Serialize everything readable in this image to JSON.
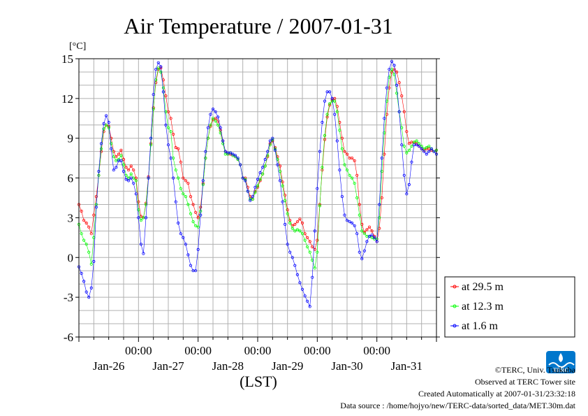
{
  "chart_data": {
    "type": "line",
    "title": "Air Temperature / 2007-01-31",
    "ylabel": "[°C]",
    "xlabel": "(LST)",
    "ylim": [
      -6,
      15
    ],
    "yticks": [
      "15",
      "12",
      "9",
      "6",
      "3",
      "0",
      "-3",
      "-6"
    ],
    "ytick_values": [
      15,
      12,
      9,
      6,
      3,
      0,
      -3,
      -6
    ],
    "xlim": [
      0,
      144
    ],
    "time_labels": [
      "00:00",
      "00:00",
      "00:00",
      "00:00",
      "00:00"
    ],
    "day_labels": [
      "Jan-26",
      "Jan-27",
      "Jan-28",
      "Jan-29",
      "Jan-30",
      "Jan-31"
    ],
    "grid": true,
    "legend_position": "right",
    "x_unit": "hours from Jan-26 00:00",
    "series": [
      {
        "name": "at 29.5 m",
        "color": "#ff0000",
        "x": [
          0,
          1,
          2,
          3,
          4,
          5,
          6,
          7,
          8,
          9,
          10,
          11,
          12,
          13,
          14,
          15,
          16,
          17,
          18,
          19,
          20,
          21,
          22,
          23,
          24,
          25,
          26,
          27,
          28,
          29,
          30,
          31,
          32,
          33,
          34,
          35,
          36,
          37,
          38,
          39,
          40,
          41,
          42,
          43,
          44,
          45,
          46,
          47,
          48,
          49,
          50,
          51,
          52,
          53,
          54,
          55,
          56,
          57,
          58,
          59,
          60,
          61,
          62,
          63,
          64,
          65,
          66,
          67,
          68,
          69,
          70,
          71,
          72,
          73,
          74,
          75,
          76,
          77,
          78,
          79,
          80,
          81,
          82,
          83,
          84,
          85,
          86,
          87,
          88,
          89,
          90,
          91,
          92,
          93,
          94,
          95,
          96,
          97,
          98,
          99,
          100,
          101,
          102,
          103,
          104,
          105,
          106,
          107,
          108,
          109,
          110,
          111,
          112,
          113,
          114,
          115,
          116,
          117,
          118,
          119,
          120,
          121,
          122,
          123,
          124,
          125,
          126,
          127,
          128,
          129,
          130,
          131,
          132,
          133,
          134,
          135,
          136,
          137,
          138,
          139,
          140,
          141,
          142,
          143,
          144
        ],
        "y": [
          4.0,
          3.5,
          2.8,
          2.6,
          2.3,
          1.8,
          3.2,
          4.6,
          6.2,
          8.0,
          9.5,
          10.0,
          9.9,
          9.0,
          8.0,
          7.6,
          7.8,
          8.1,
          7.4,
          6.8,
          6.6,
          6.9,
          6.6,
          6.0,
          4.2,
          3.1,
          3.0,
          4.1,
          6.1,
          8.6,
          11.3,
          13.2,
          14.2,
          14.3,
          13.4,
          12.2,
          11.0,
          10.5,
          9.3,
          8.3,
          8.2,
          7.2,
          6.0,
          5.8,
          5.6,
          4.6,
          4.0,
          3.4,
          3.0,
          3.8,
          5.6,
          7.5,
          9.0,
          9.9,
          10.4,
          10.5,
          10.3,
          9.6,
          8.8,
          8.0,
          7.8,
          7.8,
          7.7,
          7.6,
          7.4,
          7.0,
          6.0,
          6.0,
          5.3,
          4.6,
          4.4,
          5.0,
          5.3,
          5.8,
          6.3,
          6.9,
          7.6,
          8.6,
          8.8,
          8.3,
          7.6,
          6.9,
          5.7,
          4.7,
          3.6,
          2.8,
          2.4,
          2.5,
          2.7,
          2.9,
          2.6,
          1.8,
          1.5,
          1.2,
          0.8,
          0.6,
          1.3,
          4.0,
          6.6,
          8.9,
          10.6,
          11.5,
          11.9,
          12.0,
          11.4,
          10.2,
          9.0,
          8.0,
          7.8,
          7.5,
          7.5,
          7.3,
          6.2,
          4.0,
          2.5,
          1.9,
          2.1,
          2.3,
          2.0,
          1.6,
          1.2,
          2.2,
          4.5,
          7.8,
          10.8,
          12.8,
          14.0,
          14.2,
          14.0,
          13.2,
          12.2,
          11.0,
          9.5,
          8.6,
          8.7,
          8.7,
          8.6,
          8.4,
          8.2,
          8.1,
          8.2,
          8.2,
          8.1,
          8.0,
          8.1
        ]
      },
      {
        "name": "at 12.3 m",
        "color": "#00ff00",
        "x": [
          0,
          1,
          2,
          3,
          4,
          5,
          6,
          7,
          8,
          9,
          10,
          11,
          12,
          13,
          14,
          15,
          16,
          17,
          18,
          19,
          20,
          21,
          22,
          23,
          24,
          25,
          26,
          27,
          28,
          29,
          30,
          31,
          32,
          33,
          34,
          35,
          36,
          37,
          38,
          39,
          40,
          41,
          42,
          43,
          44,
          45,
          46,
          47,
          48,
          49,
          50,
          51,
          52,
          53,
          54,
          55,
          56,
          57,
          58,
          59,
          60,
          61,
          62,
          63,
          64,
          65,
          66,
          67,
          68,
          69,
          70,
          71,
          72,
          73,
          74,
          75,
          76,
          77,
          78,
          79,
          80,
          81,
          82,
          83,
          84,
          85,
          86,
          87,
          88,
          89,
          90,
          91,
          92,
          93,
          94,
          95,
          96,
          97,
          98,
          99,
          100,
          101,
          102,
          103,
          104,
          105,
          106,
          107,
          108,
          109,
          110,
          111,
          112,
          113,
          114,
          115,
          116,
          117,
          118,
          119,
          120,
          121,
          122,
          123,
          124,
          125,
          126,
          127,
          128,
          129,
          130,
          131,
          132,
          133,
          134,
          135,
          136,
          137,
          138,
          139,
          140,
          141,
          142,
          143,
          144
        ],
        "y": [
          2.5,
          1.8,
          1.3,
          1.0,
          0.4,
          -0.5,
          1.5,
          4.0,
          6.2,
          8.2,
          9.7,
          10.0,
          9.8,
          8.6,
          7.6,
          7.3,
          7.4,
          7.7,
          7.0,
          6.2,
          6.0,
          6.3,
          6.0,
          5.8,
          3.6,
          2.8,
          3.0,
          4.0,
          6.0,
          8.5,
          11.2,
          13.4,
          14.3,
          14.0,
          12.8,
          11.0,
          9.8,
          9.5,
          7.5,
          6.6,
          6.0,
          5.2,
          4.8,
          4.6,
          4.0,
          3.3,
          2.7,
          2.4,
          2.3,
          3.5,
          5.5,
          7.5,
          9.0,
          10.0,
          10.5,
          10.3,
          10.0,
          9.4,
          8.6,
          7.8,
          7.8,
          7.9,
          7.7,
          7.6,
          7.4,
          7.0,
          6.0,
          5.9,
          5.0,
          4.4,
          4.4,
          4.9,
          5.4,
          5.9,
          6.3,
          6.9,
          7.7,
          8.5,
          8.9,
          8.2,
          7.4,
          6.5,
          5.4,
          4.3,
          3.3,
          2.6,
          2.2,
          2.0,
          2.1,
          2.0,
          1.8,
          1.3,
          0.8,
          0.4,
          -0.2,
          -0.8,
          0.4,
          3.9,
          6.8,
          9.2,
          10.8,
          11.6,
          11.8,
          11.8,
          11.0,
          9.6,
          8.2,
          7.0,
          6.6,
          6.2,
          6.0,
          5.6,
          4.5,
          3.2,
          2.0,
          1.8,
          1.6,
          1.6,
          1.5,
          1.4,
          1.4,
          3.0,
          6.5,
          9.4,
          11.8,
          13.6,
          14.2,
          13.8,
          12.4,
          11.0,
          9.8,
          8.4,
          7.9,
          8.1,
          8.4,
          8.7,
          8.8,
          8.6,
          8.4,
          8.2,
          8.3,
          8.4,
          8.2,
          8.0,
          8.1
        ]
      },
      {
        "name": "at 1.6 m",
        "color": "#0000ff",
        "x": [
          0,
          1,
          2,
          3,
          4,
          5,
          6,
          7,
          8,
          9,
          10,
          11,
          12,
          13,
          14,
          15,
          16,
          17,
          18,
          19,
          20,
          21,
          22,
          23,
          24,
          25,
          26,
          27,
          28,
          29,
          30,
          31,
          32,
          33,
          34,
          35,
          36,
          37,
          38,
          39,
          40,
          41,
          42,
          43,
          44,
          45,
          46,
          47,
          48,
          49,
          50,
          51,
          52,
          53,
          54,
          55,
          56,
          57,
          58,
          59,
          60,
          61,
          62,
          63,
          64,
          65,
          66,
          67,
          68,
          69,
          70,
          71,
          72,
          73,
          74,
          75,
          76,
          77,
          78,
          79,
          80,
          81,
          82,
          83,
          84,
          85,
          86,
          87,
          88,
          89,
          90,
          91,
          92,
          93,
          94,
          95,
          96,
          97,
          98,
          99,
          100,
          101,
          102,
          103,
          104,
          105,
          106,
          107,
          108,
          109,
          110,
          111,
          112,
          113,
          114,
          115,
          116,
          117,
          118,
          119,
          120,
          121,
          122,
          123,
          124,
          125,
          126,
          127,
          128,
          129,
          130,
          131,
          132,
          133,
          134,
          135,
          136,
          137,
          138,
          139,
          140,
          141,
          142,
          143,
          144
        ],
        "y": [
          -0.7,
          -1.2,
          -1.8,
          -2.6,
          -3.0,
          -2.3,
          -0.3,
          3.8,
          6.5,
          8.6,
          10.1,
          10.7,
          10.2,
          8.2,
          6.6,
          6.8,
          7.3,
          7.3,
          6.5,
          5.9,
          5.8,
          6.0,
          5.6,
          4.8,
          3.0,
          1.0,
          0.3,
          3.0,
          6.0,
          9.0,
          12.3,
          14.2,
          14.7,
          14.4,
          12.5,
          10.0,
          8.5,
          7.5,
          6.0,
          4.2,
          2.6,
          1.8,
          1.5,
          1.0,
          0.2,
          -0.6,
          -1.0,
          -1.0,
          0.6,
          3.2,
          5.8,
          8.0,
          9.8,
          10.8,
          11.2,
          11.0,
          10.6,
          9.8,
          8.8,
          8.0,
          7.9,
          7.9,
          7.8,
          7.7,
          7.5,
          7.0,
          6.0,
          5.8,
          5.0,
          4.3,
          4.6,
          5.3,
          5.9,
          6.4,
          6.8,
          7.4,
          8.0,
          8.8,
          9.0,
          8.1,
          7.0,
          5.8,
          4.2,
          2.5,
          1.0,
          0.4,
          0.0,
          -0.6,
          -1.3,
          -1.9,
          -2.4,
          -2.9,
          -3.3,
          -3.7,
          -1.5,
          2.0,
          5.2,
          8.0,
          10.2,
          11.8,
          12.5,
          12.5,
          12.0,
          10.8,
          8.8,
          6.6,
          4.6,
          3.2,
          2.8,
          2.7,
          2.6,
          2.4,
          1.8,
          0.4,
          -0.1,
          0.5,
          1.2,
          1.6,
          1.7,
          1.5,
          1.2,
          4.0,
          7.5,
          10.5,
          12.8,
          14.2,
          14.8,
          14.5,
          13.0,
          11.0,
          8.5,
          6.2,
          4.8,
          5.5,
          7.2,
          8.5,
          8.5,
          8.4,
          8.2,
          8.0,
          7.8,
          8.0,
          8.2,
          8.0,
          7.8
        ]
      }
    ]
  },
  "footer": {
    "copyright": "©TERC, Univ. Tsukuba",
    "observed": "Observed at TERC Tower site",
    "created": "Created Automatically at 2007-01-31/23:32:18",
    "source": "Data source : /home/hojyo/new/TERC-data/sorted_data/MET.30m.dat"
  },
  "logo": {
    "text": "TERC",
    "color": "#0077cc"
  }
}
